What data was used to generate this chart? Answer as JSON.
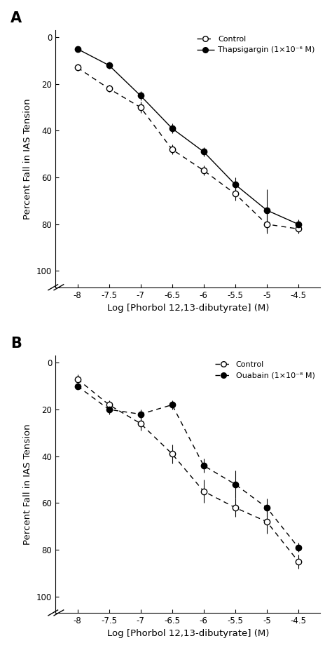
{
  "panel_A": {
    "title": "A",
    "control": {
      "x": [
        -8,
        -7.5,
        -7,
        -6.5,
        -6,
        -5.5,
        -5,
        -4.5
      ],
      "y": [
        13,
        22,
        30,
        48,
        57,
        67,
        80,
        82
      ],
      "yerr": [
        1.5,
        1.5,
        2.5,
        2,
        2,
        3,
        4,
        2
      ]
    },
    "treatment": {
      "x": [
        -8,
        -7.5,
        -7,
        -6.5,
        -6,
        -5.5,
        -5,
        -4.5
      ],
      "y": [
        5,
        12,
        25,
        39,
        49,
        63,
        74,
        80
      ],
      "yerr": [
        1,
        1.5,
        2,
        2,
        2,
        3,
        9,
        2
      ]
    },
    "legend_control": "Control",
    "legend_treatment": "Thapsigargin (1×10⁻⁶ M)",
    "treat_linestyle": "-"
  },
  "panel_B": {
    "title": "B",
    "control": {
      "x": [
        -8,
        -7.5,
        -7,
        -6.5,
        -6,
        -5.5,
        -5,
        -4.5
      ],
      "y": [
        7,
        18,
        26,
        39,
        55,
        62,
        68,
        85
      ],
      "yerr": [
        2,
        2,
        3,
        4,
        5,
        4,
        5,
        3
      ]
    },
    "treatment": {
      "x": [
        -8,
        -7.5,
        -7,
        -6.5,
        -6,
        -5.5,
        -5,
        -4.5
      ],
      "y": [
        10,
        20,
        22,
        18,
        44,
        52,
        62,
        79
      ],
      "yerr": [
        1,
        2,
        2,
        2,
        3,
        6,
        4,
        2
      ]
    },
    "legend_control": "Control",
    "legend_treatment": "Ouabain (1×10⁻⁸ M)",
    "treat_linestyle": "--"
  },
  "xlabel": "Log [Phorbol 12,13-dibutyrate] (M)",
  "ylabel": "Percent Fall in IAS Tension",
  "xticks": [
    -8,
    -7.5,
    -7,
    -6.5,
    -6,
    -5.5,
    -5,
    -4.5
  ],
  "xticklabels": [
    "-8",
    "-7.5",
    "-7",
    "-6.5",
    "-6",
    "-5.5",
    "-5",
    "-4.5"
  ],
  "yticks": [
    0,
    20,
    40,
    60,
    80,
    100
  ],
  "ymin": -3,
  "ymax": 107
}
